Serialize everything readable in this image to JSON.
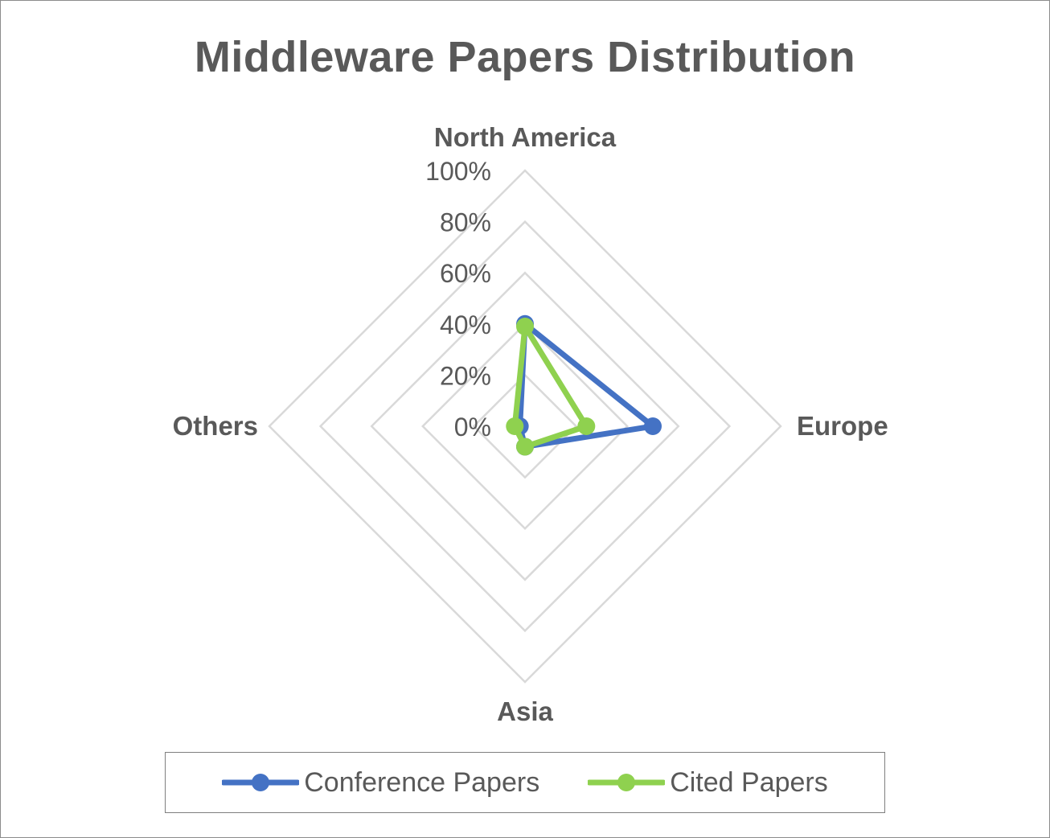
{
  "chart_data": {
    "type": "radar",
    "title": "Middleware Papers Distribution",
    "categories": [
      "North America",
      "Europe",
      "Asia",
      "Others"
    ],
    "rticks": [
      "0%",
      "20%",
      "40%",
      "60%",
      "80%",
      "100%"
    ],
    "rlim": [
      0,
      100
    ],
    "grid": true,
    "legend_position": "bottom",
    "series": [
      {
        "name": "Conference Papers",
        "values": [
          40,
          50,
          8,
          2
        ],
        "color": "#4472c4"
      },
      {
        "name": "Cited Papers",
        "values": [
          39,
          24,
          8,
          4
        ],
        "color": "#8fd14f"
      }
    ]
  }
}
